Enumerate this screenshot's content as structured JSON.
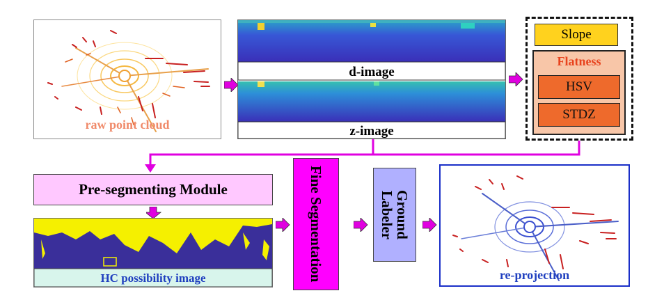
{
  "labels": {
    "raw": "raw point cloud",
    "dimage": "d-image",
    "zimage": "z-image",
    "slope": "Slope",
    "flatness": "Flatness",
    "hsv": "HSV",
    "stdz": "STDZ",
    "preseg": "Pre-segmenting Module",
    "hc": "HC possibility image",
    "fine": "Fine Segmentation",
    "ground": "Ground Labeler",
    "reproj": "re-projection"
  },
  "colors": {
    "arrow": "#e000e0",
    "raw_text": "#f08a6a",
    "hc_text": "#1f3fbf",
    "reproj_text": "#1f3fbf",
    "fine_box": "#ff00ff",
    "ground_box": "#b0b0ff",
    "preseg_box": "#ffc8ff",
    "hc_box": "#d8f5ec",
    "reproj_border": "#1a2fc8"
  },
  "icons": [
    "magenta-right-arrow",
    "magenta-down-arrow"
  ]
}
